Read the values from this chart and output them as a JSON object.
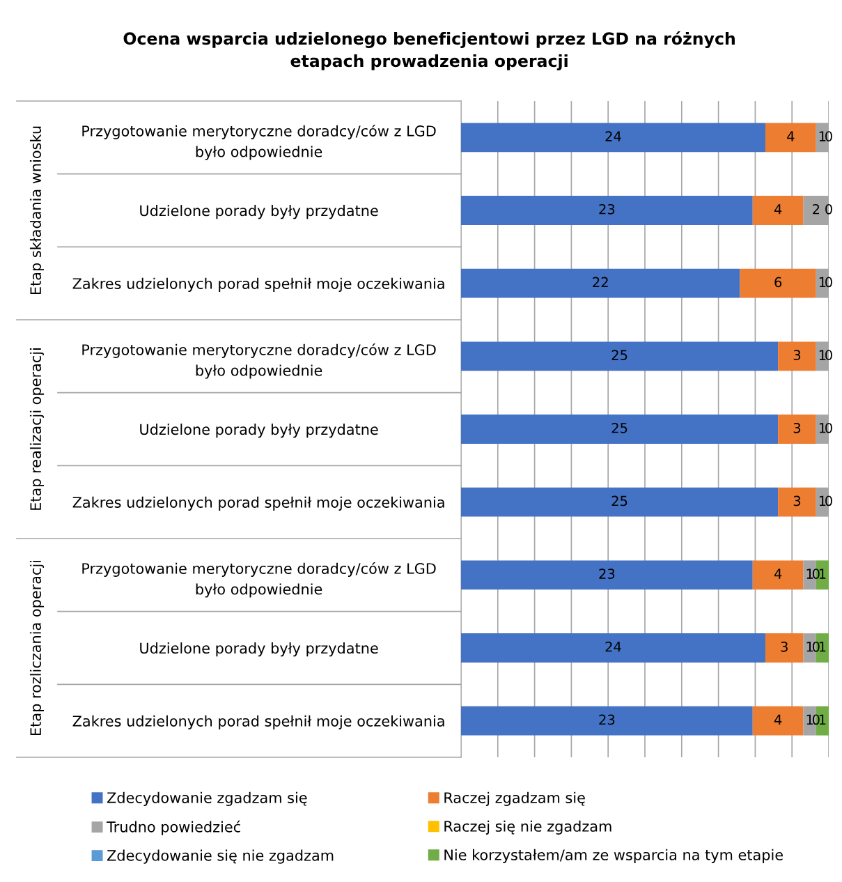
{
  "chart_data": {
    "type": "bar",
    "orientation": "horizontal",
    "stacked": true,
    "title": "Ocena wsparcia udzielonego beneficjentowi przez LGD na różnych\netapach prowadzenia operacji",
    "categories": [
      "Przygotowanie merytoryczne doradcy/ców z LGD\nbyło odpowiednie",
      "Udzielone porady były przydatne",
      "Zakres udzielonych porad spełnił moje oczekiwania",
      "Przygotowanie merytoryczne doradcy/ców z LGD\nbyło odpowiednie",
      "Udzielone porady były przydatne",
      "Zakres udzielonych porad spełnił moje oczekiwania",
      "Przygotowanie merytoryczne doradcy/ców z LGD\nbyło odpowiednie",
      "Udzielone porady były przydatne",
      "Zakres udzielonych porad spełnił moje oczekiwania"
    ],
    "annotations": [
      "Etap składania wniosku",
      "Etap realizacji operacji",
      "Etap rozliczania operacji"
    ],
    "series": [
      {
        "name": "Zdecydowanie zgadzam się",
        "color": "#4472c4",
        "values": [
          24,
          23,
          22,
          25,
          25,
          25,
          23,
          24,
          23
        ],
        "value_labels": [
          "24",
          "23",
          "22",
          "25",
          "25",
          "25",
          "23",
          "24",
          "23"
        ]
      },
      {
        "name": "Raczej zgadzam się",
        "color": "#ed7d31",
        "values": [
          4,
          4,
          6,
          3,
          3,
          3,
          4,
          3,
          4
        ],
        "value_labels": [
          "4",
          "4",
          "6",
          "3",
          "3",
          "3",
          "4",
          "3",
          "4"
        ]
      },
      {
        "name": "Trudno powiedzieć",
        "color": "#a5a5a5",
        "values": [
          1,
          2,
          1,
          1,
          1,
          1,
          1,
          1,
          1
        ],
        "value_labels": [
          "1",
          "2",
          "1",
          "1",
          "1",
          "1",
          "1",
          "1",
          "1"
        ]
      },
      {
        "name": "Raczej się nie zgadzam",
        "color": "#ffc000",
        "values": [
          0,
          0,
          0,
          0,
          0,
          0,
          0,
          0,
          0
        ],
        "value_labels": [
          "0",
          "0",
          "0",
          "0",
          "0",
          "0",
          "0",
          "0",
          "0"
        ]
      },
      {
        "name": "Zdecydowanie się nie zgadzam",
        "color": "#5b9bd5",
        "values": [
          0,
          0,
          0,
          0,
          0,
          0,
          0,
          0,
          0
        ],
        "value_labels": [
          null,
          null,
          null,
          null,
          null,
          null,
          null,
          null,
          null
        ]
      },
      {
        "name": "Nie korzystałem/am ze wsparcia na tym etapie",
        "color": "#70ad47",
        "values": [
          0,
          0,
          0,
          0,
          0,
          0,
          1,
          1,
          1
        ],
        "value_labels": [
          null,
          null,
          null,
          null,
          null,
          null,
          "1",
          "1",
          "1"
        ]
      }
    ],
    "xlim": [
      0,
      29
    ],
    "xticks": [
      {
        "value": 0,
        "label": null
      },
      {
        "value": 2.9,
        "label": null
      },
      {
        "value": 5.8,
        "label": null
      },
      {
        "value": 8.7,
        "label": null
      },
      {
        "value": 11.6,
        "label": null
      },
      {
        "value": 14.5,
        "label": null
      },
      {
        "value": 17.4,
        "label": null
      },
      {
        "value": 20.3,
        "label": null
      },
      {
        "value": 23.2,
        "label": null
      },
      {
        "value": 26.1,
        "label": null
      },
      {
        "value": 29,
        "label": null
      }
    ],
    "grid": "x",
    "legend": "bottom"
  }
}
